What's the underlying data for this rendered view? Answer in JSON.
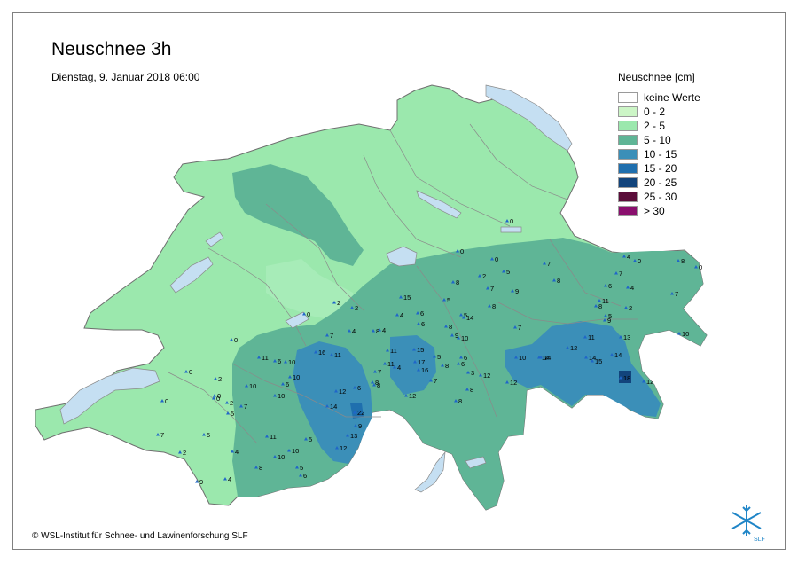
{
  "title": "Neuschnee 3h",
  "subtitle": "Dienstag, 9. Januar 2018 06:00",
  "legend": {
    "title": "Neuschnee [cm]",
    "items": [
      {
        "label": "keine Werte",
        "color": "#ffffff"
      },
      {
        "label": "0 - 2",
        "color": "#ccf5c6"
      },
      {
        "label": "2 - 5",
        "color": "#9be8ad"
      },
      {
        "label": "5 - 10",
        "color": "#5fb596"
      },
      {
        "label": "10 - 15",
        "color": "#3b8fb8"
      },
      {
        "label": "15 - 20",
        "color": "#1f6fae"
      },
      {
        "label": "20 - 25",
        "color": "#12447c"
      },
      {
        "label": "25 - 30",
        "color": "#5b0d3a"
      },
      {
        "label": "> 30",
        "color": "#8a0f6e"
      }
    ]
  },
  "copyright": "© WSL-Institut für Schnee- und Lawinenforschung SLF",
  "logo_text": "SLF",
  "colors": {
    "lake": "#c5dff2",
    "border": "#8a8a8a",
    "station": "#1f66c9"
  },
  "stations": [
    "0",
    "0",
    "0",
    "5",
    "8",
    "2",
    "7",
    "5",
    "6",
    "8",
    "7",
    "8",
    "9",
    "5",
    "7",
    "4",
    "6",
    "15",
    "4",
    "6",
    "5",
    "8",
    "14",
    "7",
    "11",
    "8",
    "2",
    "0",
    "0",
    "2",
    "0",
    "7",
    "4",
    "4",
    "9",
    "10",
    "11",
    "16",
    "11",
    "6",
    "10",
    "10",
    "11",
    "15",
    "17",
    "5",
    "16",
    "8",
    "6",
    "7",
    "8",
    "2",
    "6",
    "12",
    "14",
    "3",
    "12",
    "8",
    "12",
    "12",
    "10",
    "14",
    "4",
    "7",
    "8",
    "9",
    "10",
    "11",
    "14",
    "13",
    "15",
    "18",
    "12",
    "12",
    "14",
    "2",
    "10",
    "10",
    "11",
    "8",
    "6",
    "14",
    "13",
    "0",
    "0",
    "2",
    "5",
    "22",
    "10",
    "9",
    "4",
    "7",
    "5",
    "12",
    "10",
    "11",
    "6",
    "5",
    "7",
    "4",
    "8",
    "9",
    "2",
    "5",
    "0",
    "7",
    "8",
    "6",
    "8",
    "4",
    "0",
    "0"
  ]
}
